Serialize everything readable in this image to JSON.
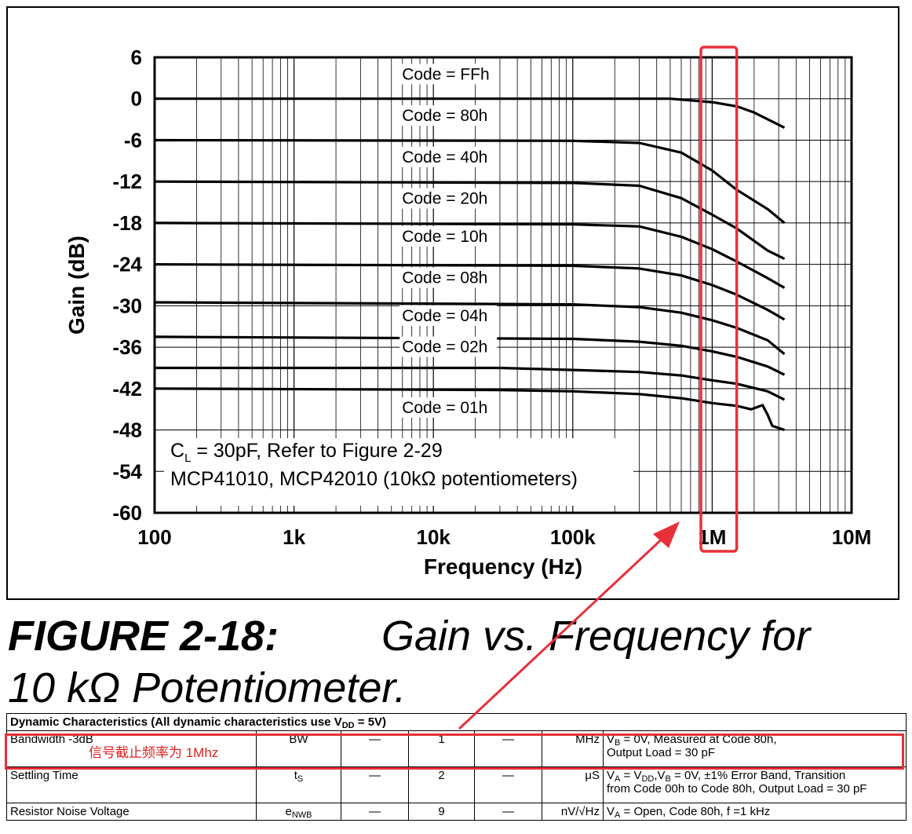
{
  "colors": {
    "highlight": "#e8303a",
    "arrow": "#e8303a",
    "trace": "#000000"
  },
  "figure": {
    "number": "FIGURE 2-18:",
    "title_line1": "Gain vs. Frequency for",
    "title_line2": "10 kΩ Potentiometer."
  },
  "chart_data": {
    "type": "line",
    "title": "",
    "xlabel": "Frequency (Hz)",
    "ylabel": "Gain (dB)",
    "x_scale": "log",
    "xlim": [
      100,
      10000000
    ],
    "ylim": [
      -60,
      6
    ],
    "x_ticks": [
      100,
      1000,
      10000,
      100000,
      1000000,
      10000000
    ],
    "x_tick_labels": [
      "100",
      "1k",
      "10k",
      "100k",
      "1M",
      "10M"
    ],
    "y_ticks": [
      6,
      0,
      -6,
      -12,
      -18,
      -24,
      -30,
      -36,
      -42,
      -48,
      -54,
      -60
    ],
    "y_tick_labels": [
      "6",
      "0",
      "-6",
      "-12",
      "-18",
      "-24",
      "-30",
      "-36",
      "-42",
      "-48",
      "-54",
      "-60"
    ],
    "grid": true,
    "annotation_lines": [
      "C_L = 30pF, Refer to Figure 2-29",
      "MCP41010, MCP42010 (10kΩ potentiometers)"
    ],
    "annotation_cl_main": "C",
    "annotation_cl_sub": "L",
    "annotation_cl_rest": " = 30pF, Refer to Figure 2-29",
    "annotation_line2": "MCP41010, MCP42010 (10kΩ potentiometers)",
    "highlight_band": [
      830000,
      1500000
    ],
    "series": [
      {
        "name": "Code = FFh",
        "label_x": 10000,
        "label_y": 3,
        "points": [
          [
            100,
            0
          ],
          [
            100000,
            0
          ],
          [
            500000,
            0
          ],
          [
            1000000,
            -0.5
          ],
          [
            1500000,
            -1.1
          ],
          [
            2000000,
            -2.0
          ],
          [
            3300000,
            -4.2
          ]
        ]
      },
      {
        "name": "Code = 80h",
        "label_x": 10000,
        "label_y": -3,
        "points": [
          [
            100,
            -6
          ],
          [
            100000,
            -6.1
          ],
          [
            300000,
            -6.4
          ],
          [
            600000,
            -7.8
          ],
          [
            1000000,
            -10.4
          ],
          [
            1500000,
            -13.2
          ],
          [
            2500000,
            -16.0
          ],
          [
            3300000,
            -18.0
          ]
        ]
      },
      {
        "name": "Code = 40h",
        "label_x": 10000,
        "label_y": -9,
        "points": [
          [
            100,
            -12
          ],
          [
            100000,
            -12.2
          ],
          [
            300000,
            -12.6
          ],
          [
            600000,
            -14.4
          ],
          [
            1000000,
            -16.8
          ],
          [
            1500000,
            -18.8
          ],
          [
            2500000,
            -22.0
          ],
          [
            3300000,
            -23.2
          ]
        ]
      },
      {
        "name": "Code = 20h",
        "label_x": 10000,
        "label_y": -15,
        "points": [
          [
            100,
            -18
          ],
          [
            100000,
            -18.2
          ],
          [
            300000,
            -18.5
          ],
          [
            600000,
            -20.0
          ],
          [
            1000000,
            -21.8
          ],
          [
            1500000,
            -23.6
          ],
          [
            2500000,
            -26.0
          ],
          [
            3300000,
            -27.4
          ]
        ]
      },
      {
        "name": "Code = 10h",
        "label_x": 10000,
        "label_y": -20.5,
        "points": [
          [
            100,
            -24
          ],
          [
            100000,
            -24.2
          ],
          [
            300000,
            -24.6
          ],
          [
            600000,
            -25.6
          ],
          [
            1000000,
            -27.0
          ],
          [
            1500000,
            -28.4
          ],
          [
            2500000,
            -30.6
          ],
          [
            3300000,
            -32.0
          ]
        ]
      },
      {
        "name": "Code = 08h",
        "label_x": 10000,
        "label_y": -26.5,
        "points": [
          [
            100,
            -29.5
          ],
          [
            100000,
            -29.8
          ],
          [
            300000,
            -30.2
          ],
          [
            600000,
            -31.0
          ],
          [
            1000000,
            -32.1
          ],
          [
            1500000,
            -33.2
          ],
          [
            2500000,
            -35.0
          ],
          [
            3300000,
            -37.0
          ]
        ]
      },
      {
        "name": "Code = 04h",
        "label_x": 10000,
        "label_y": -32,
        "points": [
          [
            100,
            -34.5
          ],
          [
            100000,
            -34.8
          ],
          [
            300000,
            -35.2
          ],
          [
            600000,
            -35.8
          ],
          [
            1000000,
            -36.6
          ],
          [
            1500000,
            -37.4
          ],
          [
            2500000,
            -38.8
          ],
          [
            3300000,
            -40.0
          ]
        ]
      },
      {
        "name": "Code = 02h",
        "label_x": 10000,
        "label_y": -36.5,
        "points": [
          [
            100,
            -39
          ],
          [
            30000,
            -39
          ],
          [
            100000,
            -39.3
          ],
          [
            300000,
            -39.6
          ],
          [
            600000,
            -40.1
          ],
          [
            1000000,
            -40.8
          ],
          [
            1500000,
            -41.3
          ],
          [
            2500000,
            -42.4
          ],
          [
            3300000,
            -43.6
          ]
        ]
      },
      {
        "name": "Code = 01h",
        "label_x": 10000,
        "label_y": -45.3,
        "points": [
          [
            100,
            -42
          ],
          [
            30000,
            -42.2
          ],
          [
            100000,
            -42.4
          ],
          [
            300000,
            -42.8
          ],
          [
            600000,
            -43.4
          ],
          [
            1000000,
            -44.1
          ],
          [
            1500000,
            -44.5
          ],
          [
            1900000,
            -45.0
          ],
          [
            2300000,
            -44.4
          ],
          [
            2500000,
            -45.8
          ],
          [
            2700000,
            -47.4
          ],
          [
            3300000,
            -48.0
          ]
        ]
      }
    ]
  },
  "table": {
    "header": "Dynamic Characteristics (All dynamic characteristics use V",
    "header_sub": "DD",
    "header_rest": " = 5V)",
    "rows": [
      {
        "param": "Bandwidth -3dB",
        "note": "信号截止频率为 1Mhz",
        "sym": "BW",
        "sym_sub": "",
        "min": "—",
        "typ": "1",
        "max": "—",
        "unit": "MHz",
        "cond": "V_B = 0V, Measured at Code 80h, Output Load = 30 pF"
      },
      {
        "param": "Settling Time",
        "note": "",
        "sym": "t",
        "sym_sub": "S",
        "min": "—",
        "typ": "2",
        "max": "—",
        "unit": "μS",
        "cond": "V_A = V_DD,V_B = 0V, ±1% Error Band, Transition from Code 00h to Code 80h, Output Load = 30 pF"
      },
      {
        "param": "Resistor Noise Voltage",
        "note": "",
        "sym": "e",
        "sym_sub": "NWB",
        "min": "—",
        "typ": "9",
        "max": "—",
        "unit": "nV/√Hz",
        "cond": "V_A = Open, Code 80h, f =1 kHz"
      }
    ],
    "cond_parts": {
      "r0_a": "V",
      "r0_a_sub": "B",
      "r0_a_rest": " = 0V, Measured at Code 80h,",
      "r0_b": "Output Load = 30 pF",
      "r1_a": "V",
      "r1_a_sub": "A",
      "r1_a_mid": " = V",
      "r1_a_sub2": "DD",
      "r1_a_mid2": ",V",
      "r1_a_sub3": "B",
      "r1_a_rest": " = 0V, ±1% Error Band, Transition",
      "r1_b": "from Code 00h to Code 80h, Output Load = 30 pF",
      "r2_a": "V",
      "r2_a_sub": "A",
      "r2_a_rest": " = Open, Code 80h, f =1 kHz"
    }
  }
}
